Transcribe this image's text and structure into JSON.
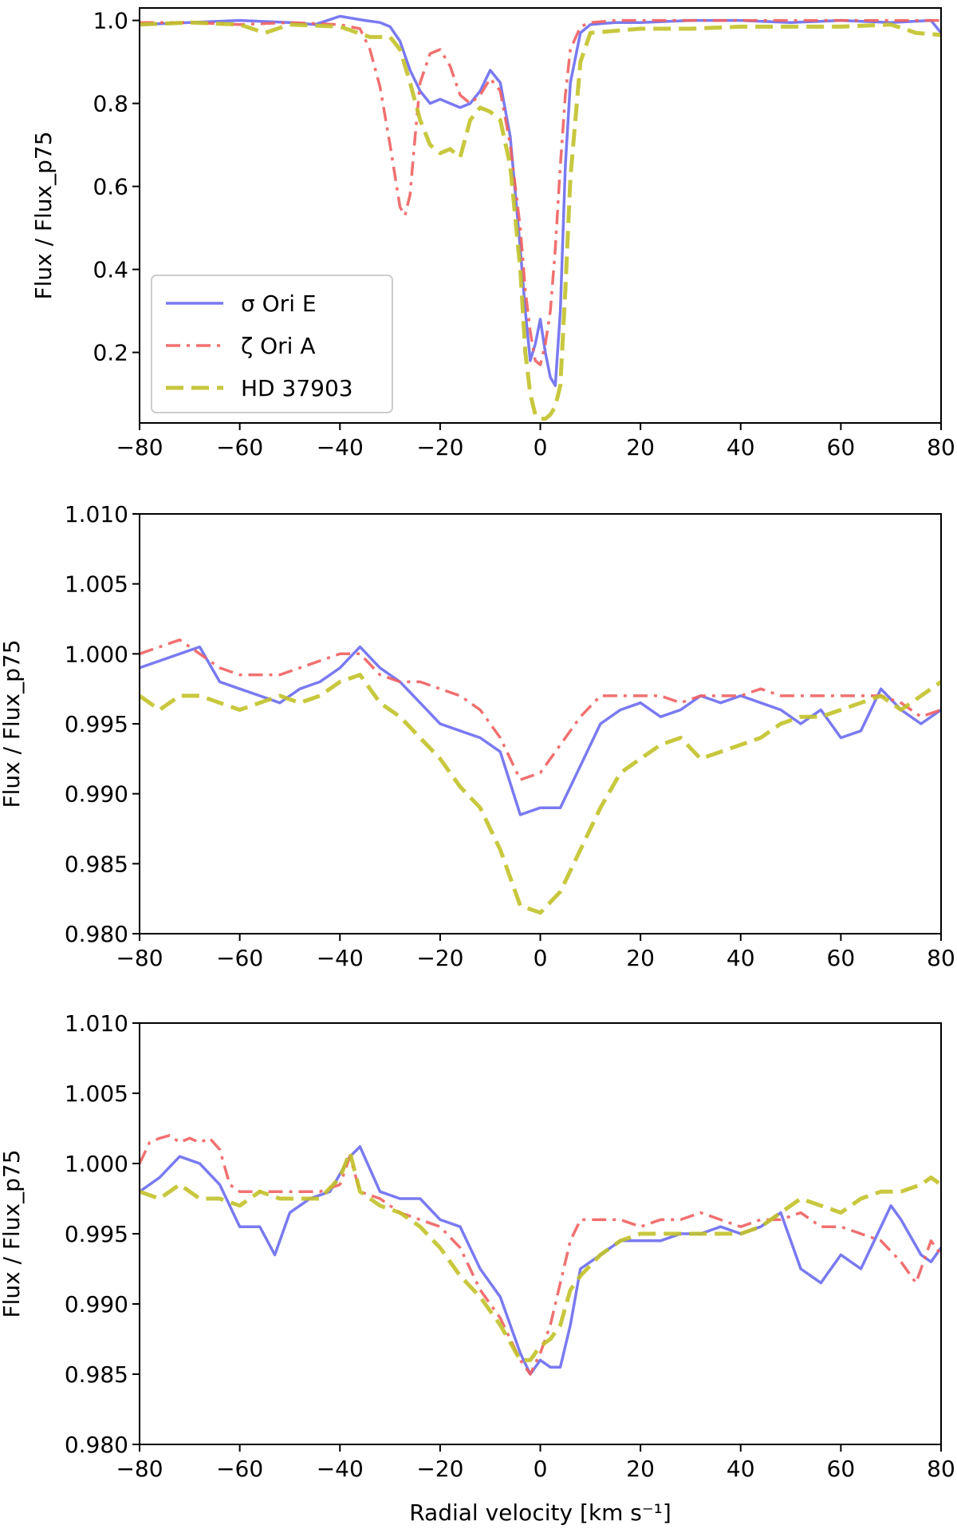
{
  "chart_data": [
    {
      "type": "line",
      "panel": "top",
      "ylabel": "Flux / Flux_p75",
      "xlabel": "",
      "xlim": [
        -80,
        80
      ],
      "ylim": [
        0.03,
        1.03
      ],
      "xticks": [
        -80,
        -60,
        -40,
        -20,
        0,
        20,
        40,
        60,
        80
      ],
      "yticks": [
        0.2,
        0.4,
        0.6,
        0.8,
        1.0
      ],
      "ytick_labels": [
        "0.2",
        "0.4",
        "0.6",
        "0.8",
        "1.0"
      ],
      "legend": {
        "placement": "lower-left"
      },
      "series": [
        {
          "name": "σ Ori E",
          "color": "#6b6bf0",
          "dash": "solid",
          "x": [
            -80,
            -70,
            -60,
            -50,
            -45,
            -40,
            -35,
            -32,
            -30,
            -28,
            -26,
            -24,
            -22,
            -20,
            -18,
            -16,
            -14,
            -12,
            -10,
            -8,
            -6,
            -4,
            -3,
            -2,
            -1,
            0,
            1,
            2,
            3,
            4,
            5,
            6,
            8,
            10,
            15,
            20,
            30,
            40,
            50,
            60,
            70,
            78,
            80
          ],
          "y": [
            0.99,
            0.995,
            1.0,
            0.995,
            0.99,
            1.01,
            1.0,
            0.995,
            0.985,
            0.95,
            0.88,
            0.83,
            0.8,
            0.81,
            0.8,
            0.79,
            0.8,
            0.83,
            0.88,
            0.85,
            0.72,
            0.45,
            0.3,
            0.18,
            0.22,
            0.28,
            0.2,
            0.14,
            0.12,
            0.3,
            0.65,
            0.85,
            0.97,
            0.99,
            0.995,
            0.995,
            1.0,
            1.0,
            0.995,
            1.0,
            0.995,
            1.0,
            0.97
          ]
        },
        {
          "name": "ζ Ori A",
          "color": "#f06060",
          "dash": "dashdot",
          "x": [
            -80,
            -70,
            -60,
            -50,
            -40,
            -36,
            -34,
            -32,
            -30,
            -28,
            -27,
            -26,
            -25,
            -24,
            -22,
            -20,
            -18,
            -16,
            -14,
            -12,
            -10,
            -8,
            -6,
            -4,
            -3,
            -2,
            -1,
            0,
            1,
            2,
            3,
            4,
            5,
            6,
            8,
            10,
            15,
            20,
            30,
            40,
            50,
            60,
            70,
            80
          ],
          "y": [
            0.995,
            0.995,
            0.99,
            0.995,
            0.99,
            0.98,
            0.93,
            0.84,
            0.7,
            0.55,
            0.53,
            0.58,
            0.72,
            0.85,
            0.92,
            0.93,
            0.89,
            0.82,
            0.8,
            0.82,
            0.86,
            0.83,
            0.7,
            0.5,
            0.35,
            0.25,
            0.18,
            0.17,
            0.22,
            0.3,
            0.45,
            0.65,
            0.82,
            0.93,
            0.985,
            0.995,
            1.0,
            1.0,
            1.0,
            1.0,
            1.0,
            1.0,
            1.0,
            1.0
          ]
        },
        {
          "name": "HD 37903",
          "color": "#c2c22a",
          "dash": "dashed",
          "x": [
            -80,
            -70,
            -60,
            -55,
            -50,
            -40,
            -34,
            -30,
            -28,
            -26,
            -24,
            -22,
            -20,
            -18,
            -16,
            -14,
            -12,
            -10,
            -8,
            -6,
            -4,
            -3,
            -2,
            -1,
            0,
            1,
            2,
            3,
            4,
            5,
            6,
            8,
            10,
            15,
            20,
            30,
            40,
            50,
            60,
            70,
            75,
            80
          ],
          "y": [
            0.99,
            0.995,
            0.99,
            0.97,
            0.99,
            0.985,
            0.96,
            0.96,
            0.93,
            0.85,
            0.76,
            0.7,
            0.68,
            0.69,
            0.67,
            0.76,
            0.79,
            0.78,
            0.76,
            0.65,
            0.4,
            0.2,
            0.1,
            0.05,
            0.04,
            0.04,
            0.05,
            0.07,
            0.12,
            0.35,
            0.62,
            0.9,
            0.97,
            0.975,
            0.98,
            0.98,
            0.985,
            0.985,
            0.985,
            0.99,
            0.97,
            0.965
          ]
        }
      ]
    },
    {
      "type": "line",
      "panel": "middle",
      "ylabel": "Flux / Flux_p75",
      "xlabel": "",
      "xlim": [
        -80,
        80
      ],
      "ylim": [
        0.98,
        1.01
      ],
      "xticks": [
        -80,
        -60,
        -40,
        -20,
        0,
        20,
        40,
        60,
        80
      ],
      "yticks": [
        0.98,
        0.985,
        0.99,
        0.995,
        1.0,
        1.005,
        1.01
      ],
      "ytick_labels": [
        "0.980",
        "0.985",
        "0.990",
        "0.995",
        "1.000",
        "1.005",
        "1.010"
      ],
      "series": [
        {
          "name": "σ Ori E",
          "color": "#6b6bf0",
          "dash": "solid",
          "x": [
            -80,
            -76,
            -72,
            -68,
            -64,
            -60,
            -56,
            -52,
            -48,
            -44,
            -40,
            -36,
            -32,
            -28,
            -24,
            -20,
            -16,
            -12,
            -8,
            -4,
            0,
            4,
            8,
            12,
            16,
            20,
            24,
            28,
            32,
            36,
            40,
            44,
            48,
            52,
            56,
            60,
            64,
            68,
            72,
            76,
            80
          ],
          "y": [
            0.999,
            0.9995,
            1.0,
            1.0005,
            0.998,
            0.9975,
            0.997,
            0.9965,
            0.9975,
            0.998,
            0.999,
            1.0005,
            0.999,
            0.998,
            0.9965,
            0.995,
            0.9945,
            0.994,
            0.993,
            0.9885,
            0.989,
            0.989,
            0.992,
            0.995,
            0.996,
            0.9965,
            0.9955,
            0.996,
            0.997,
            0.9965,
            0.997,
            0.9965,
            0.996,
            0.995,
            0.996,
            0.994,
            0.9945,
            0.9975,
            0.996,
            0.995,
            0.996
          ]
        },
        {
          "name": "ζ Ori A",
          "color": "#f06060",
          "dash": "dashdot",
          "x": [
            -80,
            -76,
            -72,
            -68,
            -64,
            -60,
            -56,
            -52,
            -48,
            -44,
            -40,
            -36,
            -32,
            -28,
            -24,
            -20,
            -16,
            -12,
            -8,
            -4,
            0,
            4,
            8,
            12,
            16,
            20,
            24,
            28,
            32,
            36,
            40,
            44,
            48,
            52,
            56,
            60,
            64,
            68,
            72,
            76,
            80
          ],
          "y": [
            1.0,
            1.0005,
            1.001,
            1.0,
            0.999,
            0.9985,
            0.9985,
            0.9985,
            0.999,
            0.9995,
            1.0,
            1.0,
            0.9985,
            0.998,
            0.998,
            0.9975,
            0.997,
            0.996,
            0.994,
            0.991,
            0.9915,
            0.9935,
            0.9955,
            0.997,
            0.997,
            0.997,
            0.997,
            0.9965,
            0.997,
            0.997,
            0.997,
            0.9975,
            0.997,
            0.997,
            0.997,
            0.997,
            0.997,
            0.997,
            0.9965,
            0.9955,
            0.996
          ]
        },
        {
          "name": "HD 37903",
          "color": "#c2c22a",
          "dash": "dashed",
          "x": [
            -80,
            -76,
            -72,
            -68,
            -64,
            -60,
            -56,
            -52,
            -48,
            -44,
            -40,
            -36,
            -32,
            -28,
            -24,
            -20,
            -16,
            -12,
            -8,
            -4,
            0,
            4,
            8,
            12,
            16,
            20,
            24,
            28,
            32,
            36,
            40,
            44,
            48,
            52,
            56,
            60,
            64,
            68,
            72,
            76,
            80
          ],
          "y": [
            0.997,
            0.996,
            0.997,
            0.997,
            0.9965,
            0.996,
            0.9965,
            0.997,
            0.9965,
            0.997,
            0.998,
            0.9985,
            0.9965,
            0.9955,
            0.994,
            0.9925,
            0.9905,
            0.989,
            0.986,
            0.982,
            0.9815,
            0.983,
            0.986,
            0.989,
            0.9915,
            0.9925,
            0.9935,
            0.994,
            0.9925,
            0.993,
            0.9935,
            0.994,
            0.995,
            0.9955,
            0.9955,
            0.996,
            0.9965,
            0.997,
            0.996,
            0.997,
            0.998
          ]
        }
      ]
    },
    {
      "type": "line",
      "panel": "bottom",
      "ylabel": "Flux / Flux_p75",
      "xlabel": "Radial velocity [km s⁻¹]",
      "xlim": [
        -80,
        80
      ],
      "ylim": [
        0.98,
        1.01
      ],
      "xticks": [
        -80,
        -60,
        -40,
        -20,
        0,
        20,
        40,
        60,
        80
      ],
      "yticks": [
        0.98,
        0.985,
        0.99,
        0.995,
        1.0,
        1.005,
        1.01
      ],
      "ytick_labels": [
        "0.980",
        "0.985",
        "0.990",
        "0.995",
        "1.000",
        "1.005",
        "1.010"
      ],
      "series": [
        {
          "name": "σ Ori E",
          "color": "#6b6bf0",
          "dash": "solid",
          "x": [
            -80,
            -76,
            -72,
            -68,
            -64,
            -60,
            -56,
            -53,
            -50,
            -46,
            -42,
            -38,
            -36,
            -32,
            -28,
            -24,
            -20,
            -16,
            -12,
            -8,
            -4,
            -2,
            0,
            2,
            4,
            6,
            8,
            12,
            16,
            20,
            24,
            28,
            32,
            36,
            40,
            44,
            48,
            52,
            56,
            60,
            64,
            68,
            70,
            72,
            76,
            78,
            80
          ],
          "y": [
            0.998,
            0.999,
            1.0005,
            1.0,
            0.9985,
            0.9955,
            0.9955,
            0.9935,
            0.9965,
            0.9975,
            0.998,
            1.0005,
            1.0012,
            0.998,
            0.9975,
            0.9975,
            0.996,
            0.9955,
            0.9925,
            0.9905,
            0.9865,
            0.985,
            0.986,
            0.9855,
            0.9855,
            0.9885,
            0.9925,
            0.9935,
            0.9945,
            0.9945,
            0.9945,
            0.995,
            0.995,
            0.9955,
            0.995,
            0.9955,
            0.9965,
            0.9925,
            0.9915,
            0.9935,
            0.9925,
            0.9955,
            0.997,
            0.996,
            0.9935,
            0.993,
            0.994
          ]
        },
        {
          "name": "ζ Ori A",
          "color": "#f06060",
          "dash": "dashdot",
          "x": [
            -80,
            -78,
            -76,
            -74,
            -72,
            -70,
            -68,
            -66,
            -64,
            -62,
            -60,
            -56,
            -52,
            -48,
            -44,
            -40,
            -38,
            -36,
            -32,
            -28,
            -24,
            -20,
            -16,
            -12,
            -8,
            -4,
            -2,
            0,
            2,
            4,
            6,
            8,
            12,
            16,
            20,
            24,
            28,
            32,
            36,
            40,
            44,
            48,
            52,
            56,
            60,
            64,
            68,
            72,
            75,
            78,
            80
          ],
          "y": [
            1.0,
            1.0015,
            1.0018,
            1.002,
            1.0015,
            1.0018,
            1.0015,
            1.0018,
            1.001,
            0.9985,
            0.998,
            0.998,
            0.998,
            0.998,
            0.998,
            0.9985,
            1.0005,
            0.998,
            0.9975,
            0.9965,
            0.996,
            0.9955,
            0.994,
            0.991,
            0.989,
            0.986,
            0.985,
            0.9865,
            0.9885,
            0.9915,
            0.9945,
            0.996,
            0.996,
            0.996,
            0.9955,
            0.996,
            0.996,
            0.9965,
            0.996,
            0.9955,
            0.996,
            0.996,
            0.9965,
            0.9955,
            0.9955,
            0.995,
            0.9945,
            0.993,
            0.9915,
            0.9945,
            0.9935
          ]
        },
        {
          "name": "HD 37903",
          "color": "#c2c22a",
          "dash": "dashed",
          "x": [
            -80,
            -76,
            -72,
            -68,
            -64,
            -60,
            -56,
            -52,
            -48,
            -44,
            -40,
            -38,
            -36,
            -32,
            -28,
            -24,
            -20,
            -16,
            -12,
            -8,
            -4,
            -2,
            0,
            2,
            4,
            6,
            8,
            12,
            16,
            20,
            24,
            28,
            32,
            36,
            40,
            44,
            48,
            52,
            56,
            60,
            64,
            68,
            72,
            76,
            78,
            80
          ],
          "y": [
            0.998,
            0.9975,
            0.9985,
            0.9975,
            0.9975,
            0.997,
            0.998,
            0.9975,
            0.9975,
            0.9975,
            0.999,
            1.0008,
            0.998,
            0.997,
            0.9965,
            0.9955,
            0.994,
            0.992,
            0.9905,
            0.9885,
            0.986,
            0.986,
            0.987,
            0.9875,
            0.9885,
            0.991,
            0.992,
            0.9935,
            0.9945,
            0.995,
            0.995,
            0.995,
            0.995,
            0.995,
            0.995,
            0.9955,
            0.9965,
            0.9975,
            0.997,
            0.9965,
            0.9975,
            0.998,
            0.998,
            0.9985,
            0.999,
            0.9985
          ]
        }
      ]
    }
  ]
}
